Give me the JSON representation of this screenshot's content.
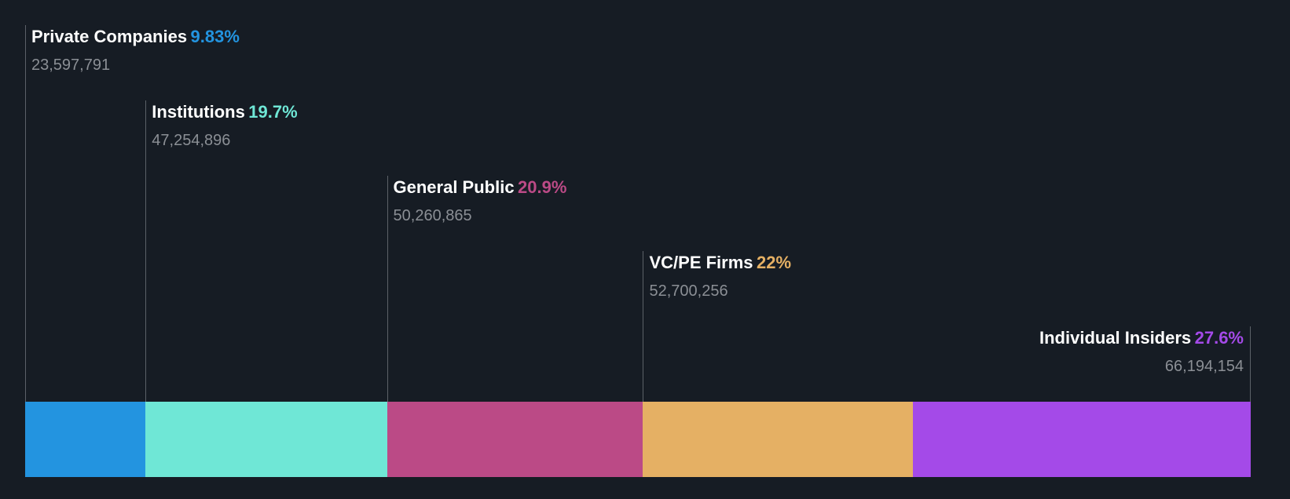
{
  "chart_data": {
    "type": "bar",
    "subtype": "stacked-horizontal-100",
    "categories": [
      "Private Companies",
      "Institutions",
      "General Public",
      "VC/PE Firms",
      "Individual Insiders"
    ],
    "percent_labels": [
      "9.83%",
      "19.7%",
      "20.9%",
      "22%",
      "27.6%"
    ],
    "values_percent": [
      9.83,
      19.7,
      20.9,
      22,
      27.6
    ],
    "shares_labels": [
      "23,597,791",
      "47,254,896",
      "50,260,865",
      "52,700,256",
      "66,194,154"
    ],
    "shares": [
      23597791,
      47254896,
      50260865,
      52700256,
      66194154
    ],
    "colors": [
      "#2394e0",
      "#6fe7d6",
      "#bb4a86",
      "#e5b064",
      "#a44ae8"
    ]
  }
}
